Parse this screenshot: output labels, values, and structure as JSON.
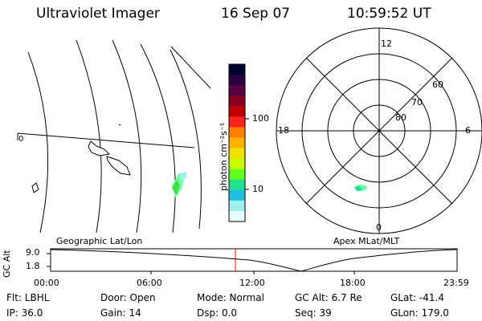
{
  "header": {
    "title": "Ultraviolet Imager",
    "date": "16 Sep 07",
    "time": "10:59:52 UT"
  },
  "geo_panel": {
    "label": "Geographic Lat/Lon",
    "zero_label": "0"
  },
  "colorbar": {
    "unit_label": "photon cm⁻²s⁻¹",
    "ticks": [
      "100",
      "10"
    ],
    "colors": [
      "#000030",
      "#2a0040",
      "#5a0040",
      "#8a0020",
      "#c00000",
      "#ff2020",
      "#ff8000",
      "#ffb000",
      "#f0e000",
      "#c8ff00",
      "#60ff20",
      "#20e090",
      "#20c0e0",
      "#a0f0f0",
      "#e8ffff"
    ]
  },
  "polar_panel": {
    "label": "Apex  MLat/MLT",
    "mlt_labels": {
      "top": "12",
      "left": "18",
      "right": "6",
      "bottom": "0"
    },
    "lat_labels": [
      "60",
      "70",
      "80"
    ]
  },
  "altitude_plot": {
    "ylabel": "GC Alt",
    "yticks": [
      "9.0",
      "1.8"
    ],
    "xticks": [
      "00:00",
      "06:00",
      "12:00",
      "18:00",
      "23:59"
    ],
    "marker_color": "#ff0000"
  },
  "info": {
    "row1": [
      {
        "label": "Flt: LBHL"
      },
      {
        "label": "Door: Open"
      },
      {
        "label": "Mode: Normal"
      },
      {
        "label": "GC Alt: 6.7 Re"
      },
      {
        "label": "GLat: -41.4"
      }
    ],
    "row2": [
      {
        "label": "IP: 36.0"
      },
      {
        "label": "Gain: 14"
      },
      {
        "label": "Dsp:     0.0"
      },
      {
        "label": "Seq: 39"
      },
      {
        "label": "GLon: 179.0"
      }
    ]
  }
}
